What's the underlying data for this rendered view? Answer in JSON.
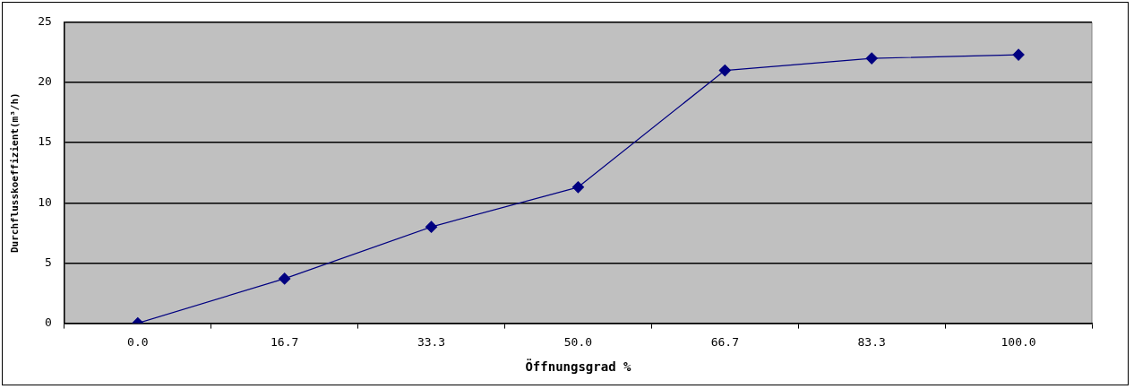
{
  "chart_data": {
    "type": "line",
    "xlabel": "Öffnungsgrad %",
    "ylabel": "Durchflusskoeffizient(m³/h)",
    "categories": [
      "0.0",
      "16.7",
      "33.3",
      "50.0",
      "66.7",
      "83.3",
      "100.0"
    ],
    "series": [
      {
        "color": "#000080",
        "values": [
          0,
          3.7,
          8.0,
          11.3,
          21.0,
          22.0,
          22.3
        ]
      }
    ],
    "ylim": [
      0,
      25
    ],
    "yticks": [
      0,
      5,
      10,
      15,
      20,
      25
    ],
    "grid": "y",
    "legend": false,
    "marker": "diamond",
    "line_style": "solid"
  }
}
